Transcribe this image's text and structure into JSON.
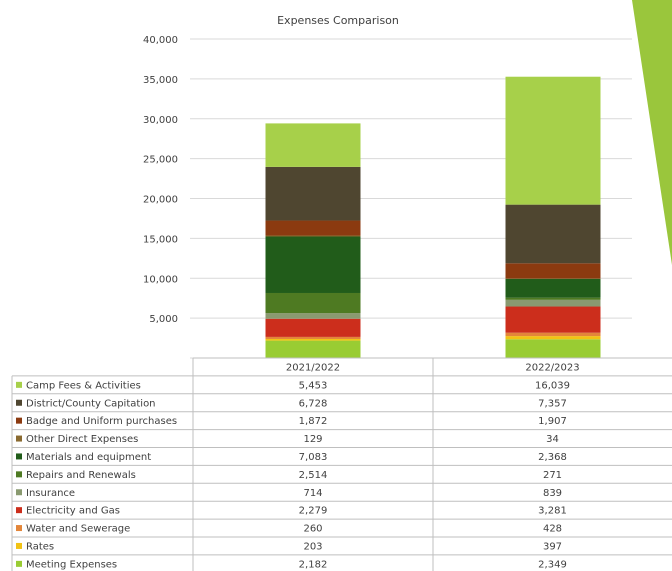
{
  "chart_data": {
    "type": "bar",
    "stacked": true,
    "title": "Expenses Comparison",
    "categories": [
      "2021/2022",
      "2022/2023"
    ],
    "ylim": [
      0,
      40000
    ],
    "yticks": [
      "",
      "5,000",
      "10,000",
      "15,000",
      "20,000",
      "25,000",
      "30,000",
      "35,000",
      "40,000"
    ],
    "grid": true,
    "legend_placement": "data-table",
    "series": [
      {
        "name": "Meeting Expenses",
        "values": [
          2182,
          2349
        ],
        "labels": [
          "2,182",
          "2,349"
        ],
        "color": "#99cc33"
      },
      {
        "name": "Rates",
        "values": [
          203,
          397
        ],
        "labels": [
          "203",
          "397"
        ],
        "color": "#f2c314"
      },
      {
        "name": "Water and Sewerage",
        "values": [
          260,
          428
        ],
        "labels": [
          "260",
          "428"
        ],
        "color": "#e3863a"
      },
      {
        "name": "Electricity and Gas",
        "values": [
          2279,
          3281
        ],
        "labels": [
          "2,279",
          "3,281"
        ],
        "color": "#cc2e1c"
      },
      {
        "name": "Insurance",
        "values": [
          714,
          839
        ],
        "labels": [
          "714",
          "839"
        ],
        "color": "#8a9a70"
      },
      {
        "name": "Repairs and Renewals",
        "values": [
          2514,
          271
        ],
        "labels": [
          "2,514",
          "271"
        ],
        "color": "#4e7a22"
      },
      {
        "name": "Materials and equipment",
        "values": [
          7083,
          2368
        ],
        "labels": [
          "7,083",
          "2,368"
        ],
        "color": "#215c1a"
      },
      {
        "name": "Other Direct Expenses",
        "values": [
          129,
          34
        ],
        "labels": [
          "129",
          "34"
        ],
        "color": "#8a6a30"
      },
      {
        "name": "Badge and Uniform purchases",
        "values": [
          1872,
          1907
        ],
        "labels": [
          "1,872",
          "1,907"
        ],
        "color": "#8b3a10"
      },
      {
        "name": "District/County Capitation",
        "values": [
          6728,
          7357
        ],
        "labels": [
          "6,728",
          "7,357"
        ],
        "color": "#4f4630"
      },
      {
        "name": "Camp Fees & Activities",
        "values": [
          5453,
          16039
        ],
        "labels": [
          "5,453",
          "16,039"
        ],
        "color": "#a7d04a"
      }
    ],
    "decoration": {
      "accent_color": "#9ac63c"
    }
  }
}
